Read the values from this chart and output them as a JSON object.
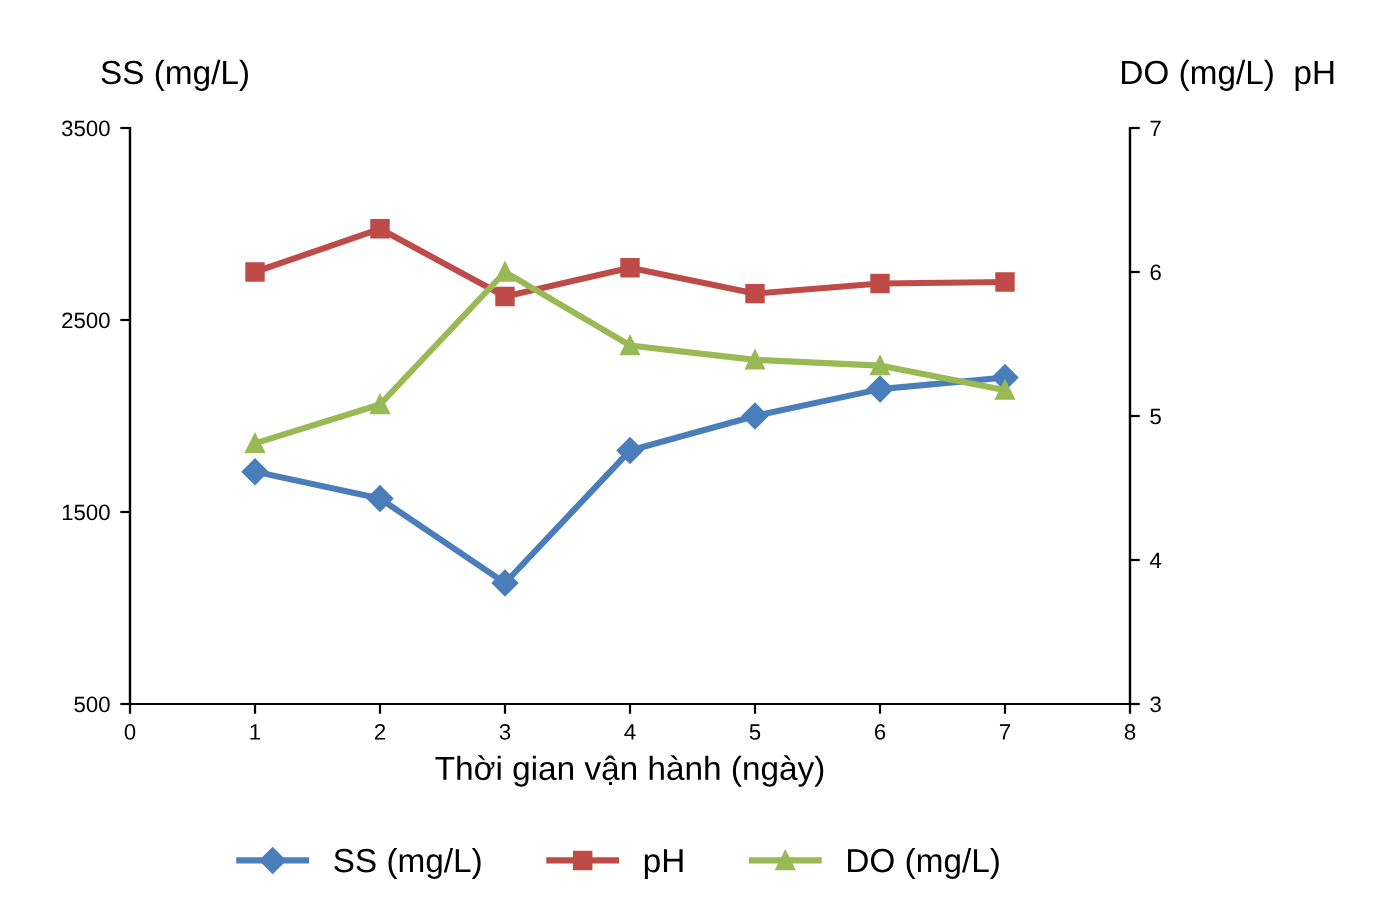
{
  "chart_data": {
    "type": "line",
    "xlabel": "Thời gian vận hành (ngày)",
    "ylabel": "SS (mg/L)",
    "y2label": "DO (mg/L)  pH",
    "x": [
      1,
      2,
      3,
      4,
      5,
      6,
      7
    ],
    "xlim": [
      0,
      8
    ],
    "xticks": [
      0,
      1,
      2,
      3,
      4,
      5,
      6,
      7,
      8
    ],
    "ylim": [
      500,
      3500
    ],
    "yticks": [
      500,
      1500,
      2500,
      3500
    ],
    "y2lim": [
      3,
      7
    ],
    "y2ticks": [
      3,
      4,
      5,
      6,
      7
    ],
    "grid": false,
    "legend": "bottom",
    "line_style": "solid",
    "series": [
      {
        "name": "SS (mg/L)",
        "color": "#4a7ebb",
        "marker": "diamond",
        "values": [
          1710,
          1570,
          1130,
          1820,
          2000,
          2140,
          2200
        ]
      },
      {
        "name": "pH",
        "color": "#be4b48",
        "marker": "square",
        "axis": "y2",
        "values": [
          6.0,
          6.3,
          5.83,
          6.03,
          5.85,
          5.92,
          5.93
        ]
      },
      {
        "name": "DO (mg/L)",
        "color": "#98b954",
        "marker": "triangle",
        "axis": "y2",
        "values": [
          4.81,
          5.08,
          6.0,
          5.49,
          5.39,
          5.35,
          5.18
        ]
      }
    ]
  }
}
